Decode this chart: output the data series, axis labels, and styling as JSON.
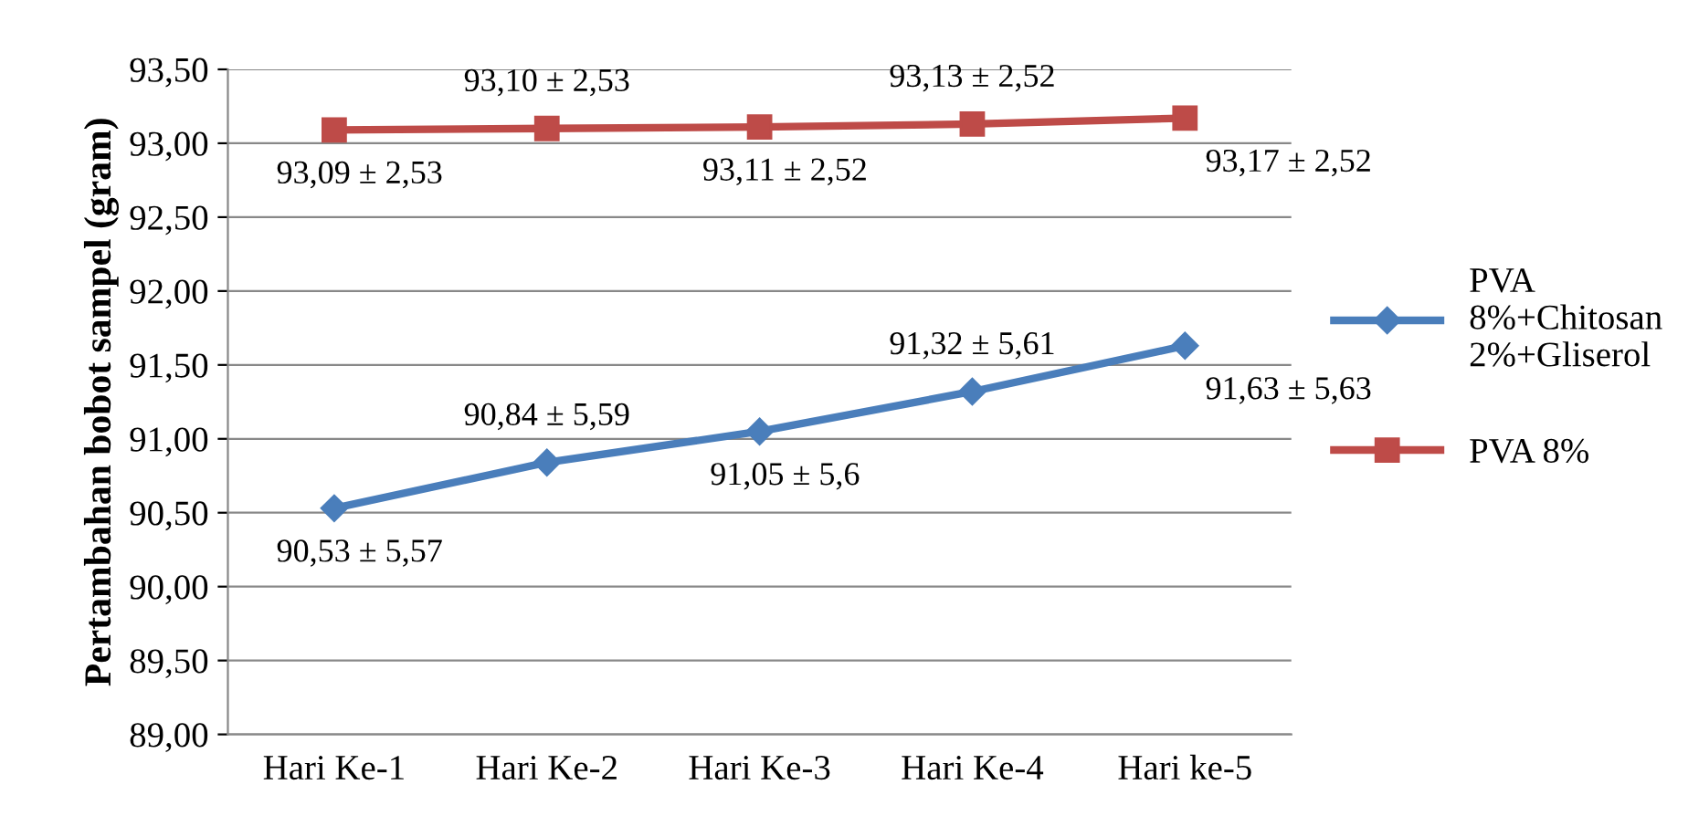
{
  "chart_data": {
    "type": "line",
    "ylabel": "Pertambahan bobot sampel (gram)",
    "categories": [
      "Hari Ke-1",
      "Hari Ke-2",
      "Hari Ke-3",
      "Hari Ke-4",
      "Hari ke-5"
    ],
    "series": [
      {
        "name": "PVA 8%+Chitosan 2%+Gliserol",
        "color": "#4a7ebb",
        "marker": "diamond",
        "values": [
          90.53,
          90.84,
          91.05,
          91.32,
          91.63
        ],
        "value_labels": [
          "90,53 ± 5,57",
          "90,84 ± 5,59",
          "91,05 ± 5,6",
          "91,32 ± 5,61",
          "91,63 ± 5,63"
        ]
      },
      {
        "name": "PVA 8%",
        "color": "#be4b48",
        "marker": "square",
        "values": [
          93.09,
          93.1,
          93.11,
          93.13,
          93.17
        ],
        "value_labels": [
          "93,09 ± 2,53",
          "93,10 ± 2,53",
          "93,11 ± 2,52",
          "93,13 ± 2,52",
          "93,17 ± 2,52"
        ]
      }
    ],
    "ylim": [
      89,
      93.5
    ],
    "yticks": [
      {
        "value": 89,
        "label": "89,00"
      },
      {
        "value": 89.5,
        "label": "89,50"
      },
      {
        "value": 90,
        "label": "90,00"
      },
      {
        "value": 90.5,
        "label": "90,50"
      },
      {
        "value": 91,
        "label": "91,00"
      },
      {
        "value": 91.5,
        "label": "91,50"
      },
      {
        "value": 92,
        "label": "92,00"
      },
      {
        "value": 92.5,
        "label": "92,50"
      },
      {
        "value": 93,
        "label": "93,00"
      },
      {
        "value": 93.5,
        "label": "93,50"
      }
    ],
    "grid": "y",
    "legend": "right",
    "line_style": "solid"
  }
}
